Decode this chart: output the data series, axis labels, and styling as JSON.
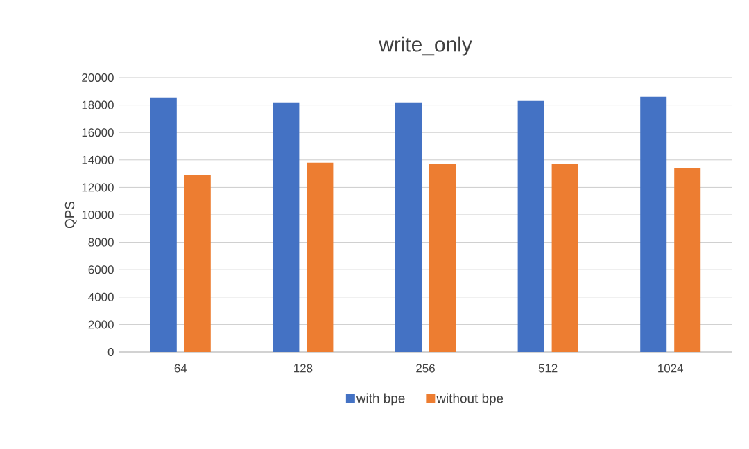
{
  "chart_data": {
    "type": "bar",
    "title": "write_only",
    "ylabel": "QPS",
    "categories": [
      "64",
      "128",
      "256",
      "512",
      "1024"
    ],
    "series": [
      {
        "name": "with bpe",
        "color": "#4472c4",
        "values": [
          18550,
          18200,
          18200,
          18300,
          18600
        ]
      },
      {
        "name": "without bpe",
        "color": "#ed7d31",
        "values": [
          12900,
          13800,
          13700,
          13700,
          13400
        ]
      }
    ],
    "ylim": [
      0,
      20000
    ],
    "yticks": [
      0,
      2000,
      4000,
      6000,
      8000,
      10000,
      12000,
      14000,
      16000,
      18000,
      20000
    ],
    "grid": "y",
    "legend": "bottom"
  }
}
